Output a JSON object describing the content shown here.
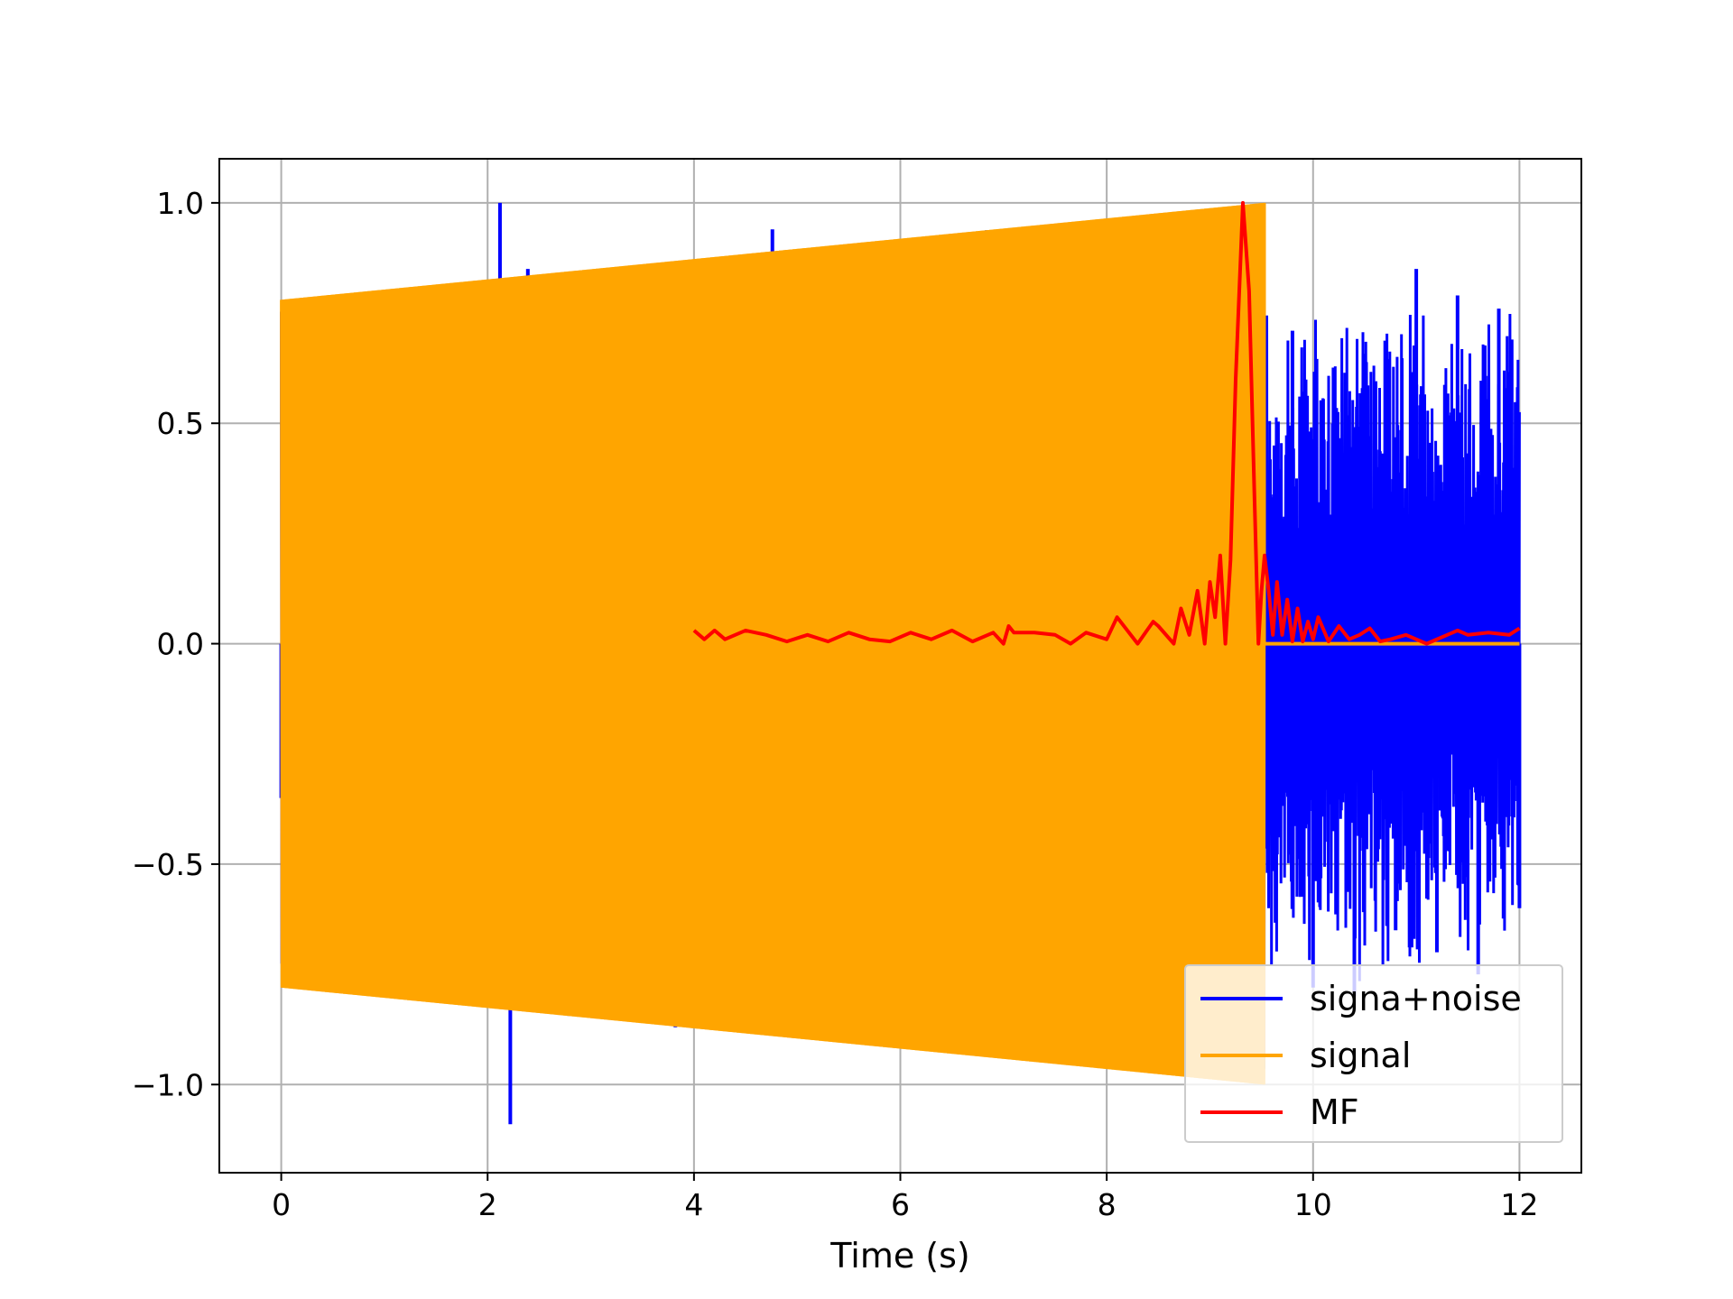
{
  "chart_data": {
    "type": "line",
    "title": "",
    "xlabel": "Time (s)",
    "ylabel": "",
    "xlim": [
      -0.6,
      12.6
    ],
    "ylim": [
      -1.2,
      1.1
    ],
    "x_ticks": [
      0,
      2,
      4,
      6,
      8,
      10,
      12
    ],
    "x_tick_labels": [
      "0",
      "2",
      "4",
      "6",
      "8",
      "10",
      "12"
    ],
    "y_ticks": [
      -1.0,
      -0.5,
      0.0,
      0.5,
      1.0
    ],
    "y_tick_labels": [
      "−1.0",
      "−0.5",
      "0.0",
      "0.5",
      "1.0"
    ],
    "grid": true,
    "legend_position": "lower-right",
    "series": [
      {
        "name": "signa+noise",
        "color": "#0000ff",
        "description_points": {
          "x": [
            0.0,
            0.02,
            0.05,
            2.12,
            2.13,
            2.22,
            2.23,
            2.39,
            3.82,
            4.76,
            4.92,
            9.52,
            9.56,
            9.8,
            10.0,
            10.2,
            10.4,
            10.6,
            10.8,
            11.0,
            11.2,
            11.4,
            11.6,
            11.8,
            12.0
          ],
          "y": [
            -0.35,
            0.49,
            0.27,
            1.0,
            -0.8,
            -1.09,
            0.6,
            0.85,
            -0.87,
            0.94,
            -0.89,
            0.57,
            -0.52,
            0.71,
            -0.78,
            0.6,
            -0.8,
            0.55,
            -0.65,
            0.85,
            -0.7,
            0.79,
            -0.75,
            0.76,
            -0.6
          ]
        }
      },
      {
        "name": "signal",
        "color": "#ffa500",
        "envelope_start": 0.78,
        "envelope_end": 1.0,
        "active_range": [
          0.0,
          9.53
        ],
        "x": [
          0.0,
          9.53,
          9.53,
          12.0
        ],
        "y_upper": [
          0.78,
          1.0,
          0.0,
          0.0
        ],
        "y_lower": [
          -0.78,
          -1.0,
          0.0,
          0.0
        ]
      },
      {
        "name": "MF",
        "color": "#ff0000",
        "x": [
          4.0,
          4.1,
          4.2,
          4.3,
          4.5,
          4.7,
          4.9,
          5.1,
          5.3,
          5.5,
          5.7,
          5.9,
          6.1,
          6.3,
          6.5,
          6.7,
          6.9,
          7.0,
          7.05,
          7.1,
          7.3,
          7.5,
          7.65,
          7.8,
          8.0,
          8.1,
          8.3,
          8.45,
          8.5,
          8.65,
          8.72,
          8.8,
          8.88,
          8.95,
          9.0,
          9.05,
          9.1,
          9.15,
          9.2,
          9.25,
          9.32,
          9.38,
          9.43,
          9.47,
          9.5,
          9.53,
          9.57,
          9.61,
          9.65,
          9.7,
          9.75,
          9.8,
          9.85,
          9.9,
          9.95,
          10.0,
          10.05,
          10.15,
          10.25,
          10.35,
          10.45,
          10.55,
          10.65,
          10.75,
          10.9,
          11.1,
          11.3,
          11.4,
          11.5,
          11.7,
          11.9,
          12.0
        ],
        "y": [
          0.03,
          0.01,
          0.03,
          0.01,
          0.03,
          0.02,
          0.005,
          0.02,
          0.005,
          0.025,
          0.01,
          0.005,
          0.025,
          0.01,
          0.03,
          0.005,
          0.025,
          0.0,
          0.04,
          0.025,
          0.025,
          0.02,
          0.0,
          0.025,
          0.01,
          0.06,
          0.0,
          0.05,
          0.04,
          0.0,
          0.08,
          0.02,
          0.12,
          0.0,
          0.14,
          0.06,
          0.2,
          0.0,
          0.19,
          0.6,
          1.0,
          0.8,
          0.35,
          0.0,
          0.12,
          0.2,
          0.12,
          0.02,
          0.14,
          0.02,
          0.1,
          0.005,
          0.08,
          0.005,
          0.05,
          0.01,
          0.06,
          0.005,
          0.04,
          0.01,
          0.02,
          0.035,
          0.005,
          0.01,
          0.02,
          0.0,
          0.02,
          0.03,
          0.02,
          0.025,
          0.02,
          0.035
        ]
      }
    ]
  },
  "legend": {
    "items": [
      {
        "label": "signa+noise",
        "color": "#0000ff"
      },
      {
        "label": "signal",
        "color": "#ffa500"
      },
      {
        "label": "MF",
        "color": "#ff0000"
      }
    ]
  }
}
